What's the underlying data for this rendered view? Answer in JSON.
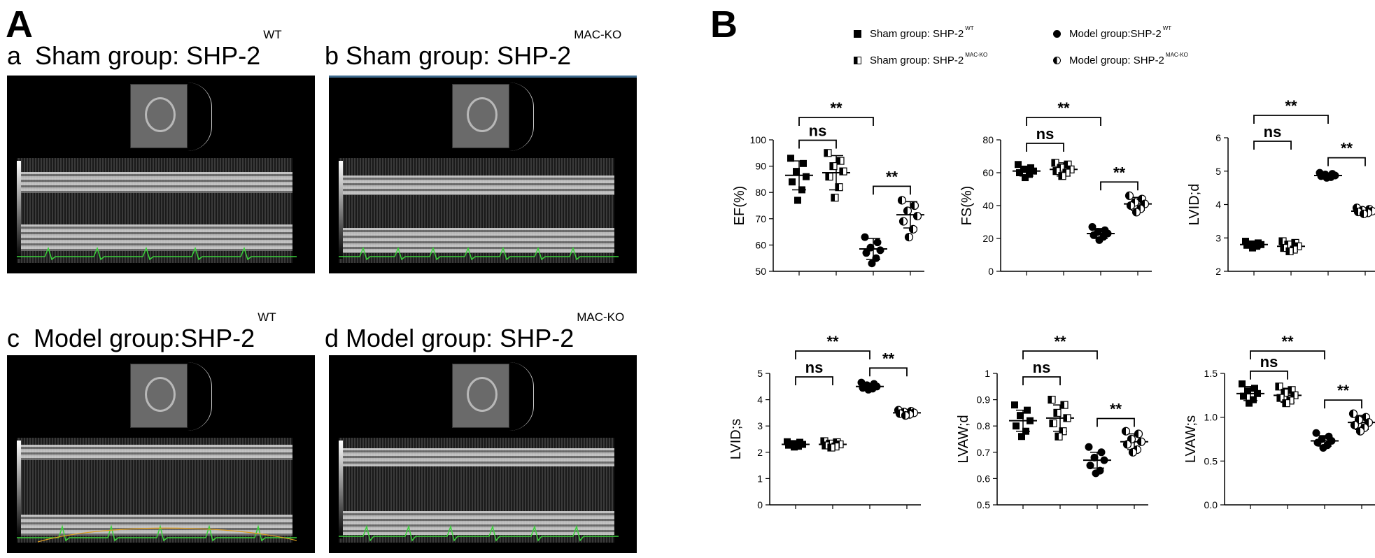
{
  "figure": {
    "panel_a_letter": "A",
    "panel_b_letter": "B"
  },
  "echo_panels": [
    {
      "letter": "a",
      "title": "Sham group: SHP-2",
      "superscript": "WT"
    },
    {
      "letter": "b",
      "title": "Sham group: SHP-2",
      "superscript": "MAC-KO"
    },
    {
      "letter": "c",
      "title": "Model group:SHP-2",
      "superscript": "WT"
    },
    {
      "letter": "d",
      "title": "Model group: SHP-2",
      "superscript": "MAC-KO"
    }
  ],
  "legend": [
    {
      "marker": "square-filled",
      "label": "Sham group: SHP-2",
      "superscript": "WT"
    },
    {
      "marker": "circle-filled",
      "label": "Model group:SHP-2",
      "superscript": "WT"
    },
    {
      "marker": "square-half",
      "label": "Sham group: SHP-2",
      "superscript": "MAC-KO"
    },
    {
      "marker": "circle-half",
      "label": "Model group: SHP-2",
      "superscript": "MAC-KO"
    }
  ],
  "chart_data": [
    {
      "type": "scatter",
      "ylabel": "EF(%)",
      "ylim": [
        50,
        100
      ],
      "yticks": [
        50,
        60,
        70,
        80,
        90,
        100
      ],
      "groups": [
        "Sham WT",
        "Sham MAC-KO",
        "Model WT",
        "Model MAC-KO"
      ],
      "means": [
        86.5,
        87.5,
        58.5,
        71.5
      ],
      "sd": [
        5.5,
        6.5,
        4,
        5
      ],
      "points": [
        [
          93,
          91,
          88,
          86,
          84,
          81,
          77
        ],
        [
          95,
          92,
          90,
          88,
          86,
          82,
          78
        ],
        [
          63,
          61,
          59,
          58,
          57,
          55,
          53
        ],
        [
          77,
          75,
          73,
          71,
          69,
          66,
          63
        ]
      ],
      "significance": [
        {
          "from": 0,
          "to": 1,
          "label": "ns"
        },
        {
          "from": 2,
          "to": 3,
          "label": "**"
        },
        {
          "from": 0,
          "to": 2,
          "label": "**"
        }
      ]
    },
    {
      "type": "scatter",
      "ylabel": "FS(%)",
      "ylim": [
        0,
        80
      ],
      "yticks": [
        0,
        20,
        40,
        60,
        80
      ],
      "groups": [
        "Sham WT",
        "Sham MAC-KO",
        "Model WT",
        "Model MAC-KO"
      ],
      "means": [
        61,
        62,
        23,
        41
      ],
      "sd": [
        3,
        4,
        3,
        4
      ],
      "points": [
        [
          65,
          63,
          62,
          61,
          60,
          59,
          57
        ],
        [
          66,
          65,
          63,
          62,
          61,
          60,
          58
        ],
        [
          27,
          25,
          24,
          23,
          22,
          21,
          19
        ],
        [
          46,
          44,
          42,
          41,
          40,
          38,
          36
        ]
      ],
      "significance": [
        {
          "from": 0,
          "to": 1,
          "label": "ns"
        },
        {
          "from": 2,
          "to": 3,
          "label": "**"
        },
        {
          "from": 0,
          "to": 2,
          "label": "**"
        }
      ]
    },
    {
      "type": "scatter",
      "ylabel": "LVID;d",
      "ylim": [
        2,
        6
      ],
      "yticks": [
        2,
        3,
        4,
        5,
        6
      ],
      "groups": [
        "Sham WT",
        "Sham MAC-KO",
        "Model WT",
        "Model MAC-KO"
      ],
      "means": [
        2.8,
        2.75,
        4.87,
        3.8
      ],
      "sd": [
        0.1,
        0.15,
        0.07,
        0.08
      ],
      "points": [
        [
          2.9,
          2.85,
          2.82,
          2.8,
          2.78,
          2.75,
          2.7
        ],
        [
          2.9,
          2.85,
          2.8,
          2.75,
          2.7,
          2.65,
          2.6
        ],
        [
          4.95,
          4.92,
          4.9,
          4.87,
          4.85,
          4.82,
          4.8
        ],
        [
          3.9,
          3.86,
          3.83,
          3.8,
          3.78,
          3.75,
          3.72
        ]
      ],
      "significance": [
        {
          "from": 0,
          "to": 1,
          "label": "ns"
        },
        {
          "from": 2,
          "to": 3,
          "label": "**"
        },
        {
          "from": 0,
          "to": 2,
          "label": "**"
        }
      ]
    },
    {
      "type": "scatter",
      "ylabel": "LVID;s",
      "ylim": [
        0,
        5
      ],
      "yticks": [
        0,
        1,
        2,
        3,
        4,
        5
      ],
      "groups": [
        "Sham WT",
        "Sham MAC-KO",
        "Model WT",
        "Model MAC-KO"
      ],
      "means": [
        2.3,
        2.3,
        4.5,
        3.5
      ],
      "sd": [
        0.1,
        0.12,
        0.12,
        0.08
      ],
      "points": [
        [
          2.4,
          2.38,
          2.33,
          2.3,
          2.27,
          2.23,
          2.2
        ],
        [
          2.42,
          2.38,
          2.33,
          2.3,
          2.26,
          2.22,
          2.18
        ],
        [
          4.65,
          4.6,
          4.55,
          4.5,
          4.45,
          4.42,
          4.38
        ],
        [
          3.6,
          3.56,
          3.53,
          3.5,
          3.47,
          3.44,
          3.4
        ]
      ],
      "significance": [
        {
          "from": 0,
          "to": 1,
          "label": "ns"
        },
        {
          "from": 2,
          "to": 3,
          "label": "**"
        },
        {
          "from": 0,
          "to": 2,
          "label": "**"
        }
      ]
    },
    {
      "type": "scatter",
      "ylabel": "LVAW;d",
      "ylim": [
        0.5,
        1.0
      ],
      "yticks": [
        0.5,
        0.6,
        0.7,
        0.8,
        0.9,
        1.0
      ],
      "groups": [
        "Sham WT",
        "Sham MAC-KO",
        "Model WT",
        "Model MAC-KO"
      ],
      "means": [
        0.82,
        0.83,
        0.67,
        0.74
      ],
      "sd": [
        0.04,
        0.05,
        0.03,
        0.03
      ],
      "points": [
        [
          0.88,
          0.86,
          0.84,
          0.82,
          0.8,
          0.78,
          0.76
        ],
        [
          0.9,
          0.88,
          0.85,
          0.83,
          0.81,
          0.78,
          0.76
        ],
        [
          0.72,
          0.7,
          0.68,
          0.67,
          0.65,
          0.63,
          0.62
        ],
        [
          0.78,
          0.77,
          0.75,
          0.74,
          0.73,
          0.71,
          0.7
        ]
      ],
      "significance": [
        {
          "from": 0,
          "to": 1,
          "label": "ns"
        },
        {
          "from": 2,
          "to": 3,
          "label": "**"
        },
        {
          "from": 0,
          "to": 2,
          "label": "**"
        }
      ]
    },
    {
      "type": "scatter",
      "ylabel": "LVAW;s",
      "ylim": [
        0,
        1.5
      ],
      "yticks": [
        "0.0",
        "0.5",
        "1.0",
        "1.5"
      ],
      "groups": [
        "Sham WT",
        "Sham MAC-KO",
        "Model WT",
        "Model MAC-KO"
      ],
      "means": [
        1.27,
        1.25,
        0.73,
        0.94
      ],
      "sd": [
        0.08,
        0.08,
        0.06,
        0.08
      ],
      "points": [
        [
          1.38,
          1.33,
          1.3,
          1.27,
          1.24,
          1.2,
          1.16
        ],
        [
          1.35,
          1.31,
          1.28,
          1.25,
          1.22,
          1.19,
          1.16
        ],
        [
          0.82,
          0.78,
          0.75,
          0.73,
          0.71,
          0.68,
          0.65
        ],
        [
          1.04,
          1.0,
          0.97,
          0.94,
          0.91,
          0.88,
          0.84
        ]
      ],
      "significance": [
        {
          "from": 0,
          "to": 1,
          "label": "ns"
        },
        {
          "from": 2,
          "to": 3,
          "label": "**"
        },
        {
          "from": 0,
          "to": 2,
          "label": "**"
        }
      ]
    }
  ]
}
